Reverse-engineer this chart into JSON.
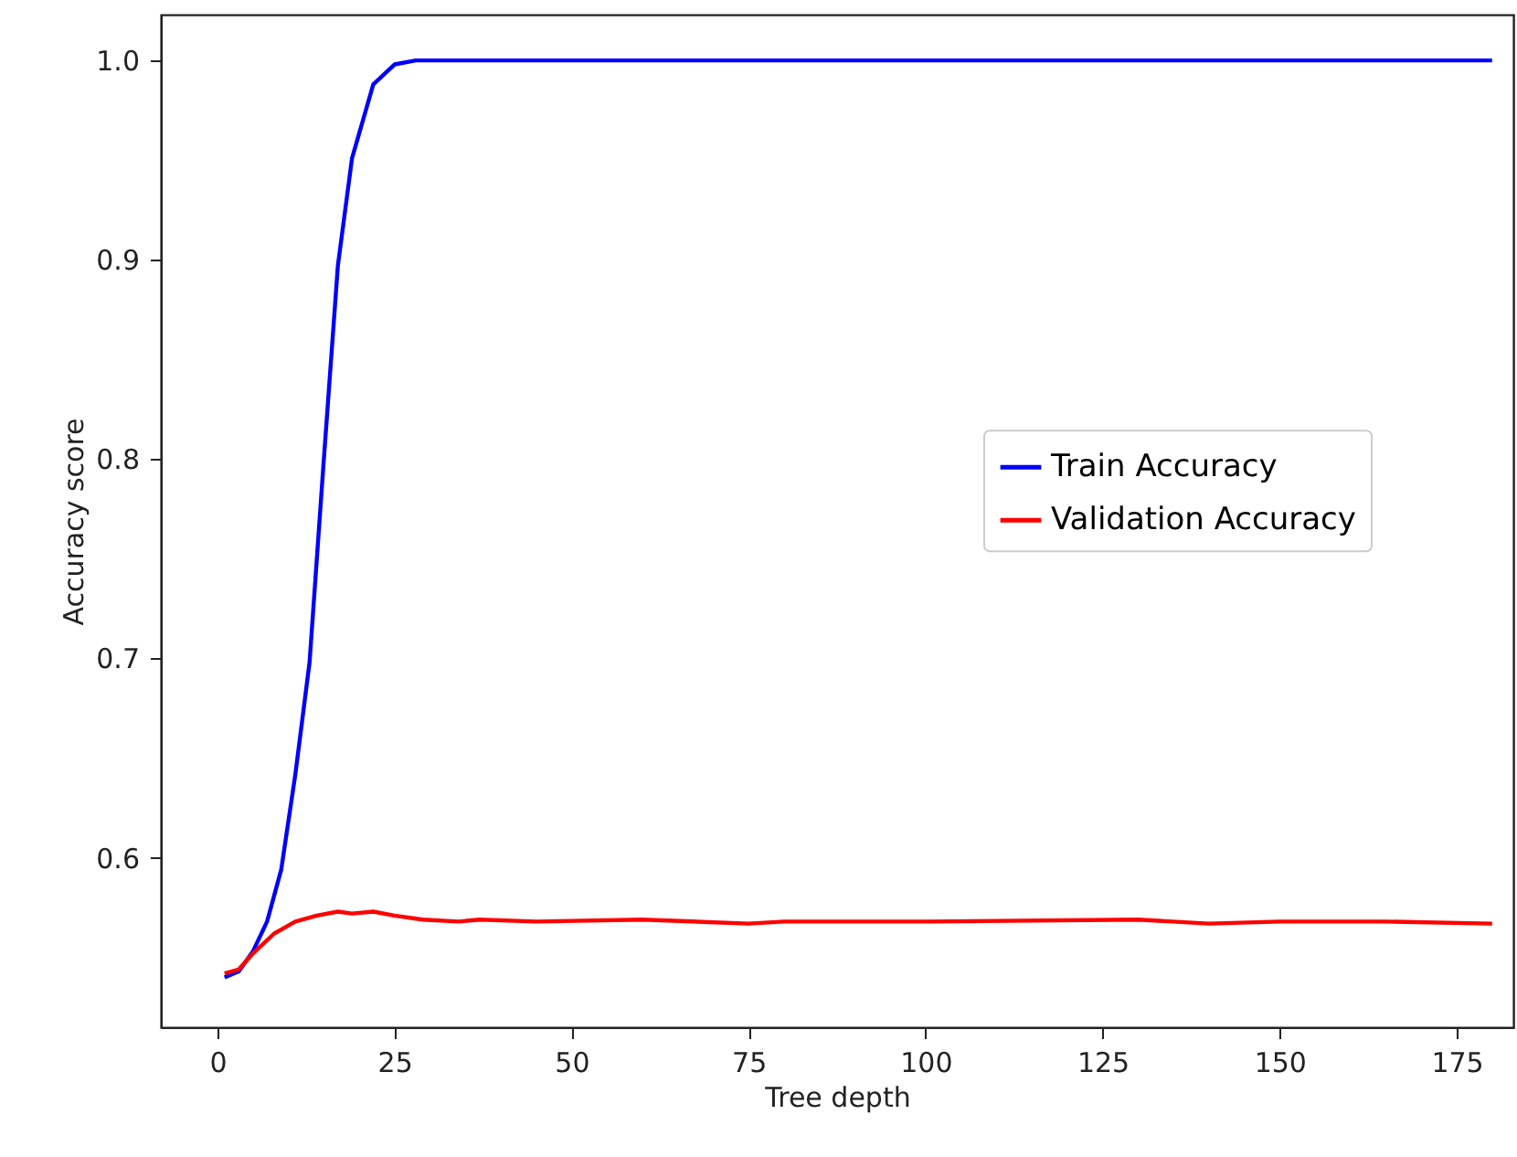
{
  "chart_data": {
    "type": "line",
    "xlabel": "Tree depth",
    "ylabel": "Accuracy score",
    "xlim": [
      -8,
      183
    ],
    "xticks": [
      0,
      25,
      50,
      75,
      100,
      125,
      150,
      175
    ],
    "ylim": [
      0.515,
      1.023
    ],
    "yticks": [
      0.6,
      0.7,
      0.8,
      0.9,
      {
        "value": 1.0,
        "label": "1.0"
      }
    ],
    "grid": false,
    "legend": "right",
    "marker": "none",
    "line_style": "solid",
    "series": [
      {
        "name": "Train Accuracy",
        "color": "#0000ff",
        "x": [
          1,
          3,
          5,
          7,
          9,
          11,
          13,
          15,
          17,
          19,
          22,
          25,
          28,
          31,
          40,
          60,
          80,
          100,
          120,
          140,
          160,
          180
        ],
        "values": [
          0.54,
          0.543,
          0.553,
          0.568,
          0.594,
          0.642,
          0.698,
          0.799,
          0.897,
          0.951,
          0.988,
          0.998,
          1.0,
          1.0,
          1.0,
          1.0,
          1.0,
          1.0,
          1.0,
          1.0,
          1.0,
          1.0
        ]
      },
      {
        "name": "Validation Accuracy",
        "color": "#ff0000",
        "x": [
          1,
          3,
          5,
          8,
          11,
          14,
          17,
          19,
          22,
          25,
          29,
          34,
          37,
          45,
          60,
          75,
          80,
          100,
          130,
          140,
          150,
          165,
          180
        ],
        "values": [
          0.542,
          0.544,
          0.552,
          0.562,
          0.568,
          0.571,
          0.573,
          0.572,
          0.573,
          0.571,
          0.569,
          0.568,
          0.569,
          0.568,
          0.569,
          0.567,
          0.568,
          0.568,
          0.569,
          0.567,
          0.568,
          0.568,
          0.567
        ]
      }
    ]
  }
}
